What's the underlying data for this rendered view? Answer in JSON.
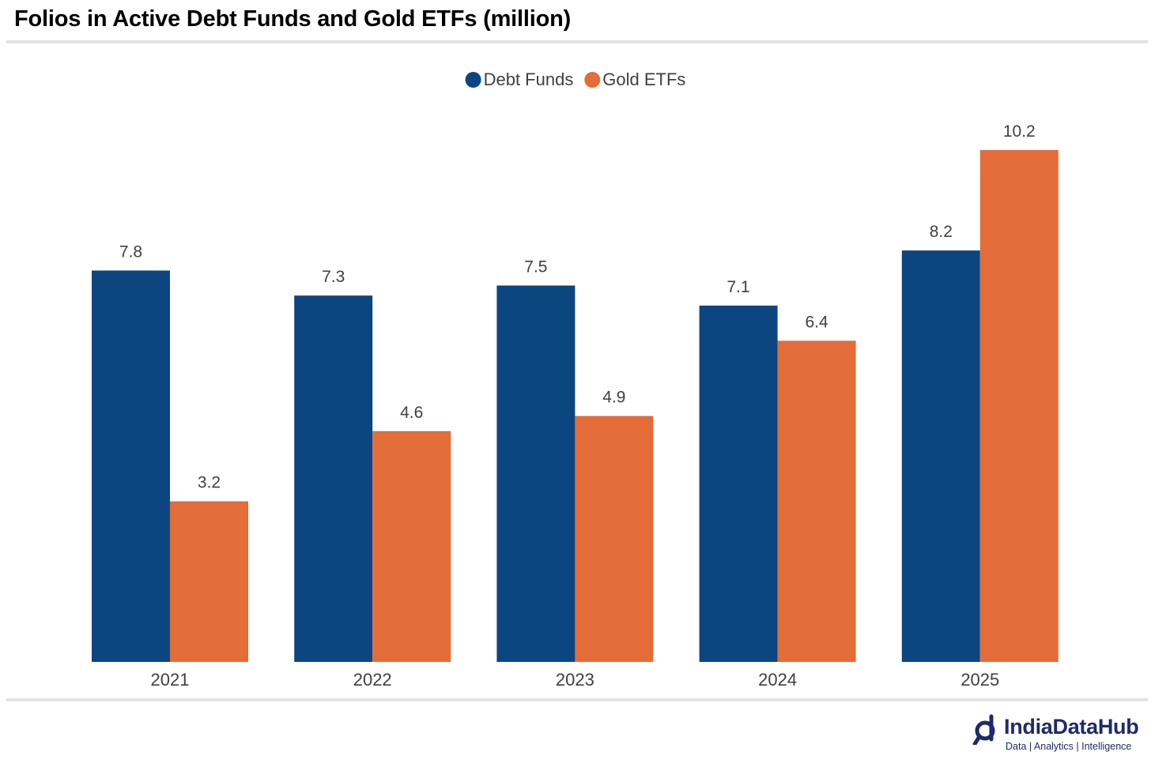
{
  "header": {
    "title": "Folios in Active Debt Funds and Gold ETFs (million)"
  },
  "brand": {
    "name": "IndiaDataHub",
    "tagline": "Data | Analytics | Intelligence"
  },
  "chart_data": {
    "type": "bar",
    "title": "Folios in Active Debt Funds and Gold ETFs (million)",
    "categories": [
      "2021",
      "2022",
      "2023",
      "2024",
      "2025"
    ],
    "series": [
      {
        "name": "Debt Funds",
        "color": "#0c4680",
        "values": [
          7.8,
          7.3,
          7.5,
          7.1,
          8.2
        ]
      },
      {
        "name": "Gold ETFs",
        "color": "#e46c38",
        "values": [
          3.2,
          4.6,
          4.9,
          6.4,
          10.2
        ]
      }
    ],
    "ylim": [
      0,
      10.2
    ],
    "xlabel": "",
    "ylabel": "",
    "grid": false,
    "legend_position": "top-center"
  }
}
